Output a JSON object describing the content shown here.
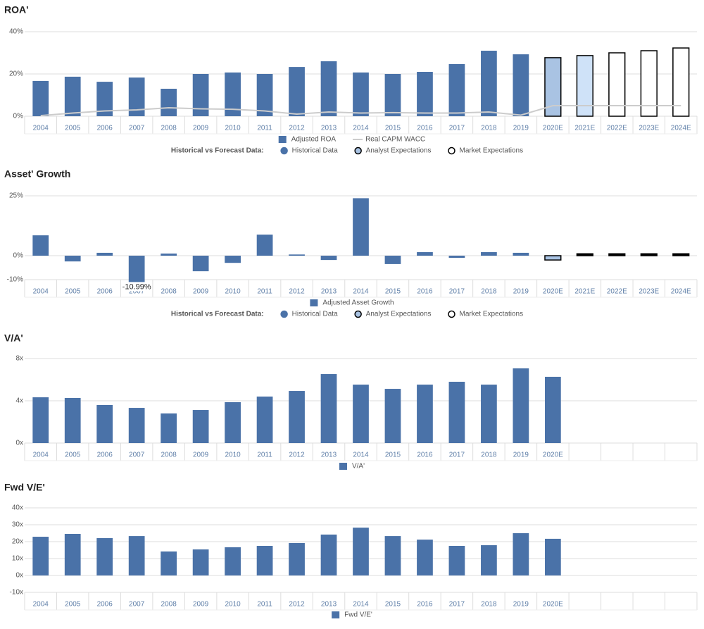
{
  "chart_data": [
    {
      "type": "bar",
      "title": "ROA'",
      "categories": [
        "2004",
        "2005",
        "2006",
        "2007",
        "2008",
        "2009",
        "2010",
        "2011",
        "2012",
        "2013",
        "2014",
        "2015",
        "2016",
        "2017",
        "2018",
        "2019",
        "2020E",
        "2021E",
        "2022E",
        "2023E",
        "2024E"
      ],
      "series": [
        {
          "name": "Adjusted ROA",
          "type": "bar",
          "color": "#4a72a8",
          "values": [
            16.7,
            18.7,
            16.3,
            18.3,
            13,
            20,
            20.7,
            20,
            23.3,
            26,
            20.7,
            20,
            21,
            24.7,
            31,
            29.3,
            27.7,
            28.7,
            30,
            31,
            32.3
          ],
          "colors": [
            "#4a72a8",
            "#4a72a8",
            "#4a72a8",
            "#4a72a8",
            "#4a72a8",
            "#4a72a8",
            "#4a72a8",
            "#4a72a8",
            "#4a72a8",
            "#4a72a8",
            "#4a72a8",
            "#4a72a8",
            "#4a72a8",
            "#4a72a8",
            "#4a72a8",
            "#4a72a8",
            "#a9c3e3",
            "#cfe2f8",
            "#ffffff",
            "#ffffff",
            "#ffffff"
          ],
          "edgecolors": [
            null,
            null,
            null,
            null,
            null,
            null,
            null,
            null,
            null,
            null,
            null,
            null,
            null,
            null,
            null,
            null,
            "#000000",
            "#000000",
            "#000000",
            "#000000",
            "#000000"
          ]
        },
        {
          "name": "Real CAPM WACC",
          "type": "line",
          "color": "#cccccc",
          "values": [
            0.3,
            1.5,
            2.5,
            3,
            4,
            3.5,
            3.3,
            2.5,
            1,
            2,
            1.5,
            1.7,
            1.5,
            1.5,
            2,
            0.5,
            5,
            5,
            5,
            5,
            5
          ]
        }
      ],
      "ylim": [
        0,
        40
      ],
      "yticks": [
        {
          "value": 0,
          "label": "0%"
        },
        {
          "value": 20,
          "label": "20%"
        },
        {
          "value": 40,
          "label": "40%"
        }
      ],
      "grid": true,
      "forecast_legend": {
        "label": "Historical vs Forecast Data:",
        "items": [
          {
            "name": "Historical Data",
            "color": "#4a72a8",
            "edgecolor": "#4a72a8"
          },
          {
            "name": "Analyst Expectations",
            "color": "#a9c3e3",
            "edgecolor": "#000000"
          },
          {
            "name": "Market Expectations",
            "color": "#ffffff",
            "edgecolor": "#000000"
          }
        ]
      }
    },
    {
      "type": "bar",
      "title": "Asset' Growth",
      "categories": [
        "2004",
        "2005",
        "2006",
        "2007",
        "2008",
        "2009",
        "2010",
        "2011",
        "2012",
        "2013",
        "2014",
        "2015",
        "2016",
        "2017",
        "2018",
        "2019",
        "2020E",
        "2021E",
        "2022E",
        "2023E",
        "2024E"
      ],
      "series": [
        {
          "name": "Adjusted Asset Growth",
          "type": "bar",
          "color": "#4a72a8",
          "values": [
            8.5,
            -2.4,
            1.2,
            -10.99,
            0.9,
            -6.5,
            -3,
            8.8,
            0.5,
            -1.8,
            24,
            -3.5,
            1.5,
            -0.9,
            1.5,
            1.2,
            -1.8,
            0.8,
            0.8,
            0.8,
            0.8
          ],
          "value_labels": [
            null,
            null,
            null,
            "-10.99%",
            null,
            null,
            null,
            null,
            null,
            null,
            null,
            null,
            null,
            null,
            null,
            null,
            null,
            null,
            null,
            null,
            null
          ],
          "colors": [
            "#4a72a8",
            "#4a72a8",
            "#4a72a8",
            "#4a72a8",
            "#4a72a8",
            "#4a72a8",
            "#4a72a8",
            "#4a72a8",
            "#4a72a8",
            "#4a72a8",
            "#4a72a8",
            "#4a72a8",
            "#4a72a8",
            "#4a72a8",
            "#4a72a8",
            "#4a72a8",
            "#a9c3e3",
            "#000000",
            "#000000",
            "#000000",
            "#000000"
          ],
          "edgecolors": [
            null,
            null,
            null,
            null,
            null,
            null,
            null,
            null,
            null,
            null,
            null,
            null,
            null,
            null,
            null,
            null,
            "#000000",
            "#000000",
            "#000000",
            "#000000",
            "#000000"
          ]
        }
      ],
      "ylim": [
        -10,
        25
      ],
      "yticks": [
        {
          "value": -10,
          "label": "-10%"
        },
        {
          "value": 0,
          "label": "0%"
        },
        {
          "value": 25,
          "label": "25%"
        }
      ],
      "grid": true,
      "forecast_legend": {
        "label": "Historical vs Forecast Data:",
        "items": [
          {
            "name": "Historical Data",
            "color": "#4a72a8",
            "edgecolor": "#4a72a8"
          },
          {
            "name": "Analyst Expectations",
            "color": "#a9c3e3",
            "edgecolor": "#000000"
          },
          {
            "name": "Market Expectations",
            "color": "#ffffff",
            "edgecolor": "#000000"
          }
        ]
      }
    },
    {
      "type": "bar",
      "title": "V/A'",
      "categories": [
        "2004",
        "2005",
        "2006",
        "2007",
        "2008",
        "2009",
        "2010",
        "2011",
        "2012",
        "2013",
        "2014",
        "2015",
        "2016",
        "2017",
        "2018",
        "2019",
        "2020E",
        null,
        null,
        null,
        null
      ],
      "series": [
        {
          "name": "V/A'",
          "type": "bar",
          "color": "#4a72a8",
          "values": [
            4.33,
            4.27,
            3.6,
            3.33,
            2.8,
            3.13,
            3.87,
            4.4,
            4.93,
            6.53,
            5.53,
            5.13,
            5.53,
            5.8,
            5.53,
            7.07,
            6.27,
            null,
            null,
            null,
            null
          ]
        }
      ],
      "ylim": [
        0,
        8
      ],
      "yticks": [
        {
          "value": 0,
          "label": "0x"
        },
        {
          "value": 4,
          "label": "4x"
        },
        {
          "value": 8,
          "label": "8x"
        }
      ],
      "grid": true
    },
    {
      "type": "bar",
      "title": "Fwd V/E'",
      "categories": [
        "2004",
        "2005",
        "2006",
        "2007",
        "2008",
        "2009",
        "2010",
        "2011",
        "2012",
        "2013",
        "2014",
        "2015",
        "2016",
        "2017",
        "2018",
        "2019",
        "2020E",
        null,
        null,
        null,
        null
      ],
      "series": [
        {
          "name": "Fwd V/E'",
          "type": "bar",
          "color": "#4a72a8",
          "values": [
            22.9,
            24.6,
            22.1,
            23.3,
            14.2,
            15.4,
            16.7,
            17.5,
            19.2,
            24.2,
            28.3,
            23.3,
            21.2,
            17.5,
            17.9,
            25,
            21.7,
            null,
            null,
            null,
            null
          ]
        }
      ],
      "ylim": [
        -10,
        40
      ],
      "yticks": [
        {
          "value": -10,
          "label": "-10x"
        },
        {
          "value": 0,
          "label": "0x"
        },
        {
          "value": 10,
          "label": "10x"
        },
        {
          "value": 20,
          "label": "20x"
        },
        {
          "value": 30,
          "label": "30x"
        },
        {
          "value": 40,
          "label": "40x"
        }
      ],
      "grid": true
    }
  ]
}
